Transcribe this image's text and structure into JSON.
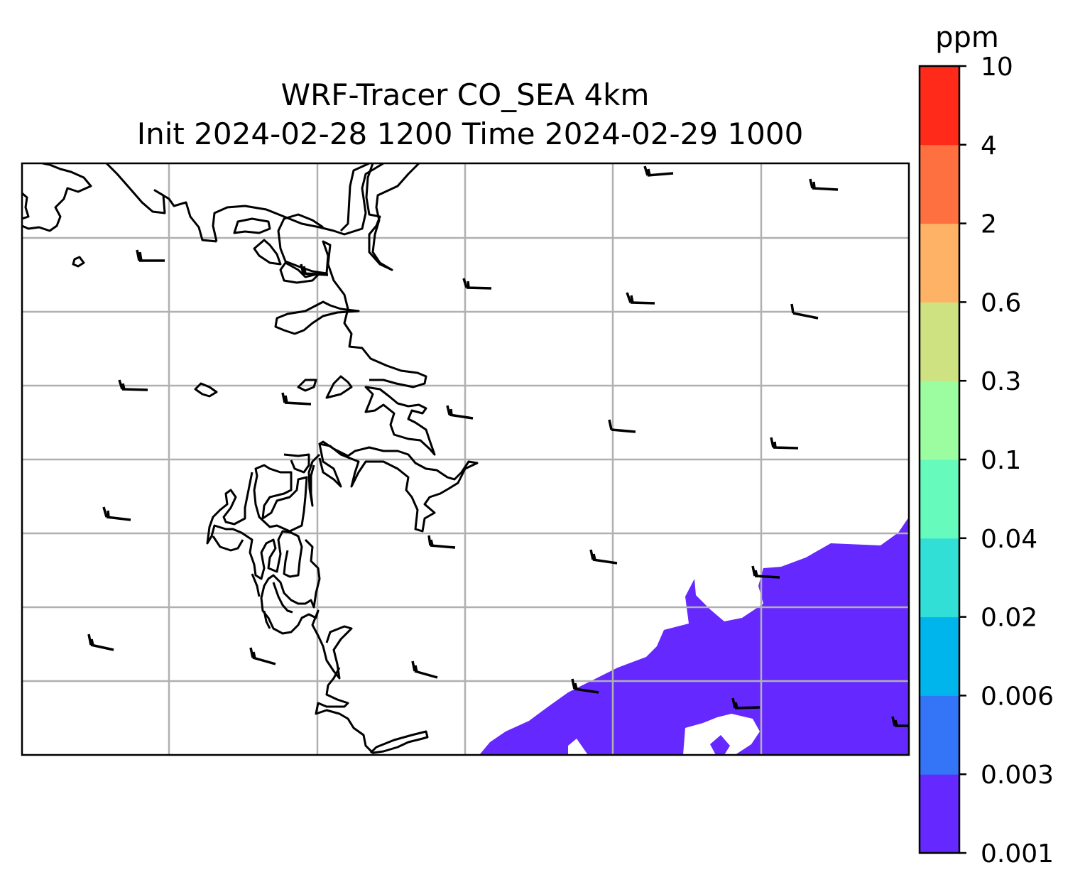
{
  "title": {
    "line1": "WRF-Tracer CO_SEA 4km",
    "line2": "Init 2024-02-28 1200 Time 2024-02-29 1000"
  },
  "colorbar": {
    "unit": "ppm",
    "levels": [
      "0.001",
      "0.003",
      "0.006",
      "0.02",
      "0.04",
      "0.1",
      "0.3",
      "0.6",
      "2",
      "4",
      "10"
    ],
    "colors": [
      "#6528fe",
      "#3375f6",
      "#00b5eb",
      "#32dfd6",
      "#66fbbd",
      "#9cfda0",
      "#cee282",
      "#feb266",
      "#fe7040",
      "#ff2a1a"
    ]
  },
  "map": {
    "gridlines": true,
    "concentration_band": "0.001",
    "fill_color": "#6528fe",
    "coastline_color": "#000000",
    "grid_color": "#b0b0b0",
    "wind_barbs": true
  }
}
